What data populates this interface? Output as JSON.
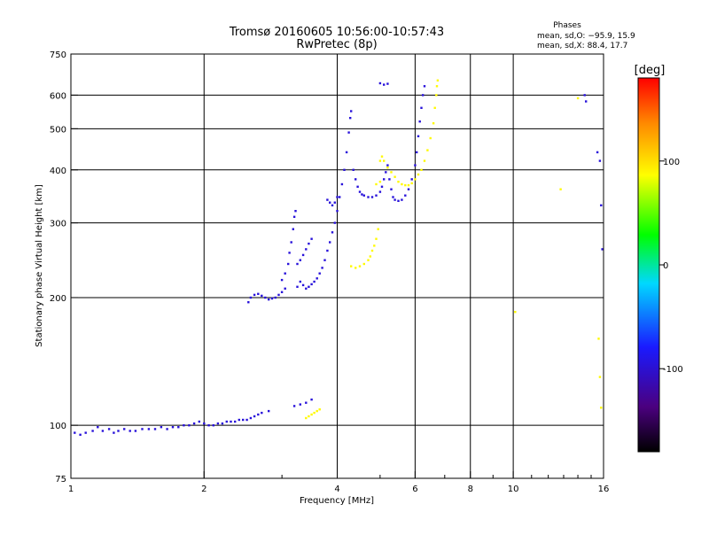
{
  "chart_data": {
    "type": "scatter",
    "title": "Tromsø 20160605 10:56:00-10:57:43",
    "subtitle": "RwPretec (8p)",
    "xlabel": "Frequency [MHz]",
    "ylabel": "Stationary phase Virtual Height [km]",
    "x_scale": "log",
    "y_scale": "log",
    "xlim": [
      1,
      16
    ],
    "ylim": [
      75,
      750
    ],
    "x_ticks": [
      1,
      2,
      4,
      6,
      8,
      10,
      16
    ],
    "x_tick_labels": [
      "1",
      "2",
      "4",
      "6",
      "8",
      "10",
      "16"
    ],
    "x_major_grid": [
      2,
      4,
      6,
      8,
      10
    ],
    "x_minor_ticks": [
      3,
      5,
      7,
      9,
      11,
      12,
      13,
      14,
      15
    ],
    "y_ticks": [
      75,
      100,
      200,
      300,
      400,
      500,
      600,
      750
    ],
    "y_tick_labels": [
      "75",
      "100",
      "200",
      "300",
      "400",
      "500",
      "600",
      "750"
    ],
    "y_major_grid": [
      100,
      200,
      300,
      400,
      500,
      600
    ],
    "grid": true,
    "info": {
      "heading": "Phases",
      "line1": "mean, sd,O: −95.9, 15.9",
      "line2": "mean, sd,X:  88.4, 17.7"
    },
    "colorbar": {
      "label": "[deg]",
      "range": [
        -180,
        180
      ],
      "ticks": [
        100,
        0,
        -100
      ],
      "tick_labels": [
        "100",
        "0",
        "-100"
      ],
      "colormap": "rainbow"
    },
    "series": [
      {
        "name": "O",
        "color_value": -95.9,
        "points": [
          [
            1.02,
            96
          ],
          [
            1.05,
            95
          ],
          [
            1.08,
            96
          ],
          [
            1.12,
            97
          ],
          [
            1.15,
            99
          ],
          [
            1.18,
            97
          ],
          [
            1.22,
            98
          ],
          [
            1.25,
            96
          ],
          [
            1.28,
            97
          ],
          [
            1.32,
            98
          ],
          [
            1.36,
            97
          ],
          [
            1.4,
            97
          ],
          [
            1.45,
            98
          ],
          [
            1.5,
            98
          ],
          [
            1.55,
            98
          ],
          [
            1.6,
            99
          ],
          [
            1.65,
            98
          ],
          [
            1.7,
            99
          ],
          [
            1.75,
            99
          ],
          [
            1.8,
            100
          ],
          [
            1.85,
            100
          ],
          [
            1.9,
            101
          ],
          [
            1.95,
            102
          ],
          [
            2.0,
            101
          ],
          [
            2.05,
            100
          ],
          [
            2.1,
            100
          ],
          [
            2.15,
            101
          ],
          [
            2.2,
            101
          ],
          [
            2.25,
            102
          ],
          [
            2.3,
            102
          ],
          [
            2.35,
            102
          ],
          [
            2.4,
            103
          ],
          [
            2.45,
            103
          ],
          [
            2.5,
            103
          ],
          [
            2.55,
            104
          ],
          [
            2.6,
            105
          ],
          [
            2.65,
            106
          ],
          [
            2.7,
            107
          ],
          [
            2.8,
            108
          ],
          [
            2.52,
            195
          ],
          [
            2.55,
            200
          ],
          [
            2.6,
            203
          ],
          [
            2.65,
            204
          ],
          [
            2.7,
            202
          ],
          [
            2.75,
            200
          ],
          [
            2.8,
            198
          ],
          [
            2.85,
            199
          ],
          [
            2.9,
            200
          ],
          [
            2.95,
            203
          ],
          [
            3.0,
            206
          ],
          [
            3.05,
            210
          ],
          [
            3.0,
            220
          ],
          [
            3.05,
            228
          ],
          [
            3.1,
            240
          ],
          [
            3.12,
            255
          ],
          [
            3.15,
            270
          ],
          [
            3.18,
            290
          ],
          [
            3.2,
            310
          ],
          [
            3.22,
            320
          ],
          [
            3.25,
            240
          ],
          [
            3.3,
            245
          ],
          [
            3.35,
            252
          ],
          [
            3.4,
            260
          ],
          [
            3.45,
            268
          ],
          [
            3.5,
            275
          ],
          [
            3.25,
            212
          ],
          [
            3.3,
            218
          ],
          [
            3.35,
            214
          ],
          [
            3.4,
            210
          ],
          [
            3.45,
            212
          ],
          [
            3.5,
            215
          ],
          [
            3.55,
            218
          ],
          [
            3.6,
            222
          ],
          [
            3.65,
            228
          ],
          [
            3.7,
            235
          ],
          [
            3.75,
            245
          ],
          [
            3.8,
            258
          ],
          [
            3.85,
            270
          ],
          [
            3.9,
            285
          ],
          [
            3.95,
            300
          ],
          [
            4.0,
            320
          ],
          [
            4.05,
            345
          ],
          [
            4.1,
            370
          ],
          [
            4.15,
            400
          ],
          [
            4.2,
            440
          ],
          [
            4.25,
            490
          ],
          [
            4.28,
            530
          ],
          [
            4.3,
            550
          ],
          [
            3.8,
            340
          ],
          [
            3.85,
            335
          ],
          [
            3.9,
            330
          ],
          [
            3.95,
            335
          ],
          [
            4.0,
            345
          ],
          [
            4.35,
            400
          ],
          [
            4.4,
            380
          ],
          [
            4.45,
            365
          ],
          [
            4.5,
            355
          ],
          [
            4.55,
            350
          ],
          [
            4.6,
            348
          ],
          [
            4.7,
            345
          ],
          [
            4.8,
            345
          ],
          [
            4.9,
            348
          ],
          [
            5.0,
            355
          ],
          [
            5.05,
            365
          ],
          [
            5.1,
            380
          ],
          [
            5.15,
            395
          ],
          [
            5.2,
            410
          ],
          [
            5.25,
            380
          ],
          [
            5.3,
            360
          ],
          [
            5.35,
            345
          ],
          [
            5.4,
            340
          ],
          [
            5.5,
            338
          ],
          [
            5.6,
            340
          ],
          [
            5.7,
            348
          ],
          [
            5.8,
            360
          ],
          [
            5.9,
            380
          ],
          [
            6.0,
            410
          ],
          [
            6.05,
            440
          ],
          [
            6.1,
            480
          ],
          [
            6.15,
            520
          ],
          [
            6.2,
            560
          ],
          [
            6.25,
            600
          ],
          [
            6.3,
            630
          ],
          [
            5.0,
            640
          ],
          [
            5.1,
            635
          ],
          [
            5.2,
            638
          ],
          [
            3.5,
            115
          ],
          [
            3.4,
            113
          ],
          [
            3.3,
            112
          ],
          [
            3.2,
            111
          ],
          [
            14.5,
            600
          ],
          [
            14.6,
            580
          ],
          [
            15.5,
            440
          ],
          [
            15.7,
            420
          ],
          [
            15.8,
            330
          ],
          [
            15.9,
            260
          ]
        ]
      },
      {
        "name": "X",
        "color_value": 88.4,
        "points": [
          [
            3.4,
            104
          ],
          [
            3.45,
            105
          ],
          [
            3.5,
            106
          ],
          [
            3.55,
            107
          ],
          [
            3.6,
            108
          ],
          [
            3.65,
            109
          ],
          [
            4.3,
            237
          ],
          [
            4.4,
            235
          ],
          [
            4.5,
            237
          ],
          [
            4.6,
            240
          ],
          [
            4.7,
            245
          ],
          [
            4.75,
            250
          ],
          [
            4.8,
            258
          ],
          [
            4.85,
            265
          ],
          [
            4.9,
            275
          ],
          [
            4.95,
            290
          ],
          [
            5.0,
            420
          ],
          [
            5.05,
            430
          ],
          [
            5.1,
            420
          ],
          [
            5.2,
            405
          ],
          [
            5.3,
            395
          ],
          [
            5.4,
            385
          ],
          [
            5.5,
            375
          ],
          [
            5.6,
            370
          ],
          [
            5.7,
            368
          ],
          [
            5.8,
            368
          ],
          [
            5.9,
            372
          ],
          [
            6.0,
            380
          ],
          [
            6.1,
            390
          ],
          [
            6.2,
            400
          ],
          [
            6.3,
            420
          ],
          [
            6.4,
            445
          ],
          [
            6.5,
            475
          ],
          [
            6.6,
            515
          ],
          [
            6.65,
            560
          ],
          [
            6.7,
            600
          ],
          [
            6.72,
            630
          ],
          [
            6.75,
            650
          ],
          [
            4.9,
            370
          ],
          [
            5.0,
            375
          ],
          [
            10.1,
            185
          ],
          [
            12.8,
            360
          ],
          [
            14.0,
            590
          ],
          [
            15.6,
            160
          ],
          [
            15.7,
            130
          ],
          [
            15.8,
            110
          ]
        ]
      }
    ]
  }
}
